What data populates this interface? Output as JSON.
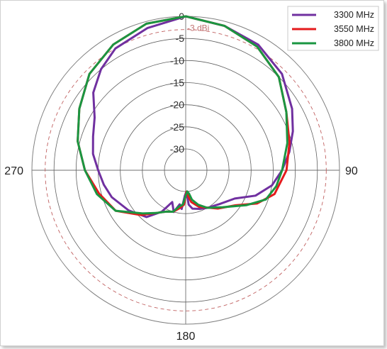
{
  "chart_data": {
    "type": "polar-line",
    "title": "",
    "radial_unit": "dBi",
    "r_min": -30,
    "r_max": 0,
    "r_ticks": [
      0,
      -5,
      -10,
      -15,
      -20,
      -25,
      -30
    ],
    "r_tick_labels": [
      "0",
      "-5",
      "-10",
      "-15",
      "-20",
      "-25",
      "-30"
    ],
    "angle_labels": [
      {
        "angle": 90,
        "label": "90"
      },
      {
        "angle": 180,
        "label": "180"
      },
      {
        "angle": 270,
        "label": "270"
      }
    ],
    "reference_line": {
      "value": -3,
      "label": "-3 dBi"
    },
    "legend_position": "top-right",
    "series": [
      {
        "name": "3300 MHz",
        "color": "#7030a0",
        "points": [
          [
            0,
            0
          ],
          [
            15,
            -1
          ],
          [
            30,
            -2
          ],
          [
            45,
            -4
          ],
          [
            60,
            -7
          ],
          [
            70,
            -9
          ],
          [
            80,
            -11
          ],
          [
            90,
            -13
          ],
          [
            100,
            -15
          ],
          [
            110,
            -18
          ],
          [
            120,
            -22
          ],
          [
            135,
            -24
          ],
          [
            150,
            -25
          ],
          [
            160,
            -25.5
          ],
          [
            170,
            -26
          ],
          [
            175,
            -27
          ],
          [
            178,
            -30
          ],
          [
            182,
            -29
          ],
          [
            186,
            -26
          ],
          [
            190,
            -27
          ],
          [
            196,
            -25
          ],
          [
            203,
            -27
          ],
          [
            210,
            -24
          ],
          [
            220,
            -21
          ],
          [
            235,
            -19
          ],
          [
            250,
            -17
          ],
          [
            260,
            -16
          ],
          [
            270,
            -15
          ],
          [
            280,
            -13.5
          ],
          [
            290,
            -12.5
          ],
          [
            300,
            -11
          ],
          [
            310,
            -7.5
          ],
          [
            320,
            -5
          ],
          [
            330,
            -3
          ],
          [
            345,
            -1.5
          ],
          [
            360,
            0
          ]
        ]
      },
      {
        "name": "3550 MHz",
        "color": "#e41a1c",
        "points": [
          [
            0,
            0
          ],
          [
            15,
            -1
          ],
          [
            30,
            -2.5
          ],
          [
            45,
            -5
          ],
          [
            60,
            -8.5
          ],
          [
            75,
            -10.5
          ],
          [
            90,
            -12
          ],
          [
            105,
            -14
          ],
          [
            115,
            -17
          ],
          [
            125,
            -21
          ],
          [
            140,
            -23.5
          ],
          [
            160,
            -26
          ],
          [
            170,
            -27.5
          ],
          [
            175,
            -29
          ],
          [
            178,
            -30
          ],
          [
            183,
            -27
          ],
          [
            190,
            -26
          ],
          [
            197,
            -25
          ],
          [
            205,
            -24.5
          ],
          [
            215,
            -23
          ],
          [
            225,
            -20.5
          ],
          [
            240,
            -16.5
          ],
          [
            255,
            -14.5
          ],
          [
            270,
            -12
          ],
          [
            285,
            -9.5
          ],
          [
            300,
            -7
          ],
          [
            315,
            -4
          ],
          [
            330,
            -2
          ],
          [
            345,
            -0.5
          ],
          [
            360,
            0
          ]
        ]
      },
      {
        "name": "3800 MHz",
        "color": "#1a9641",
        "points": [
          [
            0,
            0
          ],
          [
            15,
            -1
          ],
          [
            30,
            -2.5
          ],
          [
            45,
            -5
          ],
          [
            60,
            -8.5
          ],
          [
            75,
            -11
          ],
          [
            90,
            -13
          ],
          [
            100,
            -14
          ],
          [
            110,
            -15.5
          ],
          [
            120,
            -19
          ],
          [
            135,
            -23
          ],
          [
            150,
            -25
          ],
          [
            160,
            -26.5
          ],
          [
            168,
            -28
          ],
          [
            172,
            -29.5
          ],
          [
            176,
            -30
          ],
          [
            180,
            -29
          ],
          [
            185,
            -27
          ],
          [
            190,
            -26.5
          ],
          [
            197,
            -25
          ],
          [
            205,
            -24.5
          ],
          [
            215,
            -23
          ],
          [
            225,
            -21
          ],
          [
            240,
            -16.5
          ],
          [
            255,
            -14
          ],
          [
            270,
            -12
          ],
          [
            285,
            -9.5
          ],
          [
            300,
            -7
          ],
          [
            315,
            -4
          ],
          [
            330,
            -2
          ],
          [
            345,
            -0.5
          ],
          [
            360,
            0
          ]
        ]
      }
    ]
  }
}
